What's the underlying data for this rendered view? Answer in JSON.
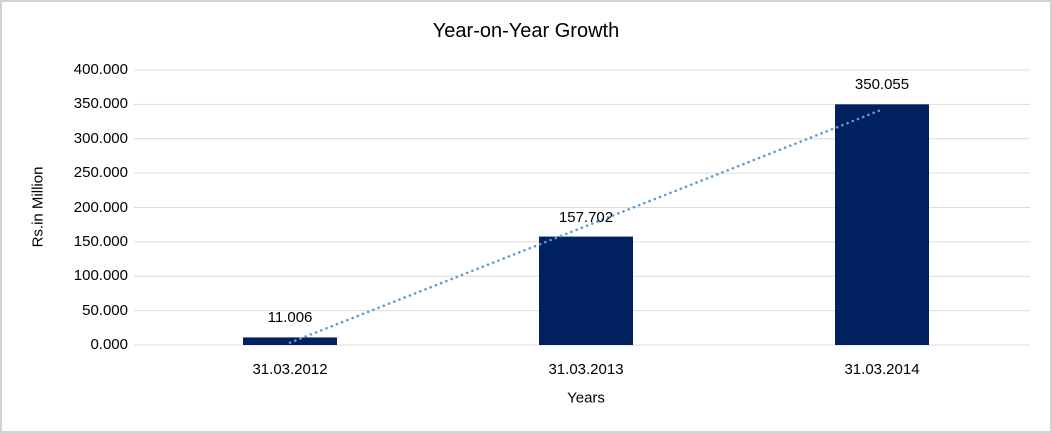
{
  "chart_data": {
    "type": "bar",
    "title": "Year-on-Year Growth",
    "xlabel": "Years",
    "ylabel": "Rs.in Million",
    "categories": [
      "31.03.2012",
      "31.03.2013",
      "31.03.2014"
    ],
    "values": [
      11.006,
      157.702,
      350.055
    ],
    "data_labels": [
      "11.006",
      "157.702",
      "350.055"
    ],
    "ylim": [
      0,
      400
    ],
    "y_tick_step": 50,
    "y_tick_labels": [
      "0.000",
      "50.000",
      "100.000",
      "150.000",
      "200.000",
      "250.000",
      "300.000",
      "350.000",
      "400.000"
    ],
    "grid": true,
    "legend_position": "none",
    "trendline": {
      "type": "linear",
      "style": "dotted"
    },
    "colors": {
      "bar": "#002060",
      "trendline": "#5B9BD5",
      "gridline": "#DCDCDC",
      "axis_line": "#DCDCDC",
      "text": "#000000",
      "frame_border": "#D3D3D3"
    }
  }
}
